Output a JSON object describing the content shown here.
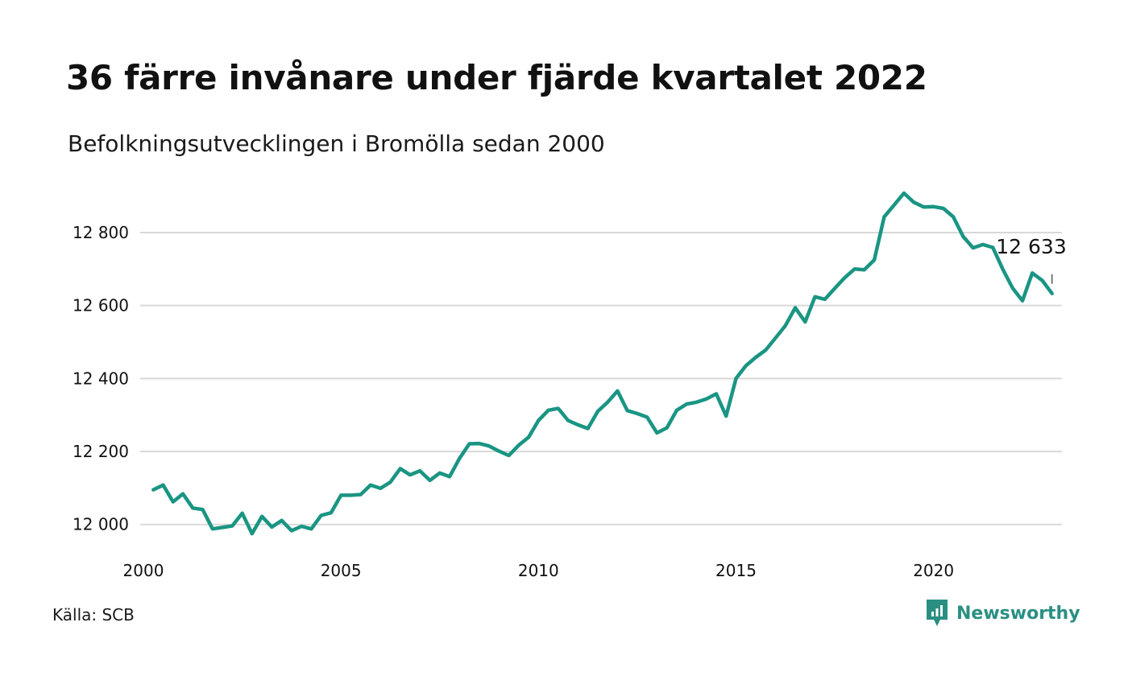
{
  "header": {
    "title": "36 färre invånare under fjärde kvartalet 2022",
    "subtitle": "Befolkningsutvecklingen i Bromölla sedan 2000"
  },
  "footer": {
    "source": "Källa: SCB",
    "brand": "Newsworthy"
  },
  "colors": {
    "line": "#1a9583",
    "grid": "#d9d9d9",
    "text": "#111111",
    "brand": "#2a8f82"
  },
  "chart_data": {
    "type": "line",
    "title": "36 färre invånare under fjärde kvartalet 2022",
    "subtitle": "Befolkningsutvecklingen i Bromölla sedan 2000",
    "xlabel": "",
    "ylabel": "",
    "xlim": [
      2000,
      2023.25
    ],
    "ylim": [
      11920,
      12930
    ],
    "grid": "horizontal",
    "legend": "none",
    "x_ticks": [
      2000,
      2005,
      2010,
      2015,
      2020
    ],
    "x_tick_labels": [
      "2000",
      "2005",
      "2010",
      "2015",
      "2020"
    ],
    "y_ticks": [
      12000,
      12200,
      12400,
      12600,
      12800
    ],
    "y_tick_labels": [
      "12 000",
      "12 200",
      "12 400",
      "12 600",
      "12 800"
    ],
    "end_label": "12 633",
    "series": [
      {
        "x": [
          2000.25,
          2000.5,
          2000.75,
          2001.0,
          2001.25,
          2001.5,
          2001.75,
          2002.0,
          2002.25,
          2002.5,
          2002.75,
          2003.0,
          2003.25,
          2003.5,
          2003.75,
          2004.0,
          2004.25,
          2004.5,
          2004.75,
          2005.0,
          2005.25,
          2005.5,
          2005.75,
          2006.0,
          2006.25,
          2006.5,
          2006.75,
          2007.0,
          2007.25,
          2007.5,
          2007.75,
          2008.0,
          2008.25,
          2008.5,
          2008.75,
          2009.0,
          2009.25,
          2009.5,
          2009.75,
          2010.0,
          2010.25,
          2010.5,
          2010.75,
          2011.0,
          2011.25,
          2011.5,
          2011.75,
          2012.0,
          2012.25,
          2012.5,
          2012.75,
          2013.0,
          2013.25,
          2013.5,
          2013.75,
          2014.0,
          2014.25,
          2014.5,
          2014.75,
          2015.0,
          2015.25,
          2015.5,
          2015.75,
          2016.0,
          2016.25,
          2016.5,
          2016.75,
          2017.0,
          2017.25,
          2017.5,
          2017.75,
          2018.0,
          2018.25,
          2018.5,
          2018.75,
          2019.0,
          2019.25,
          2019.5,
          2019.75,
          2020.0,
          2020.25,
          2020.5,
          2020.75,
          2021.0,
          2021.25,
          2021.5,
          2021.75,
          2022.0,
          2022.25,
          2022.5,
          2022.75,
          2023.0
        ],
        "values": [
          12095,
          12108,
          12062,
          12084,
          12045,
          12041,
          11988,
          11992,
          11996,
          12031,
          11975,
          12022,
          11993,
          12011,
          11983,
          11995,
          11988,
          12025,
          12032,
          12080,
          12080,
          12082,
          12108,
          12099,
          12116,
          12153,
          12136,
          12147,
          12121,
          12141,
          12131,
          12181,
          12221,
          12222,
          12215,
          12201,
          12189,
          12217,
          12239,
          12285,
          12313,
          12318,
          12285,
          12273,
          12263,
          12310,
          12335,
          12366,
          12312,
          12304,
          12294,
          12251,
          12265,
          12313,
          12330,
          12335,
          12344,
          12358,
          12297,
          12400,
          12435,
          12458,
          12478,
          12511,
          12545,
          12594,
          12555,
          12624,
          12617,
          12647,
          12676,
          12700,
          12698,
          12725,
          12843,
          12875,
          12908,
          12883,
          12870,
          12871,
          12866,
          12843,
          12789,
          12758,
          12767,
          12759,
          12700,
          12648,
          12613,
          12689,
          12669,
          12633
        ]
      }
    ]
  }
}
